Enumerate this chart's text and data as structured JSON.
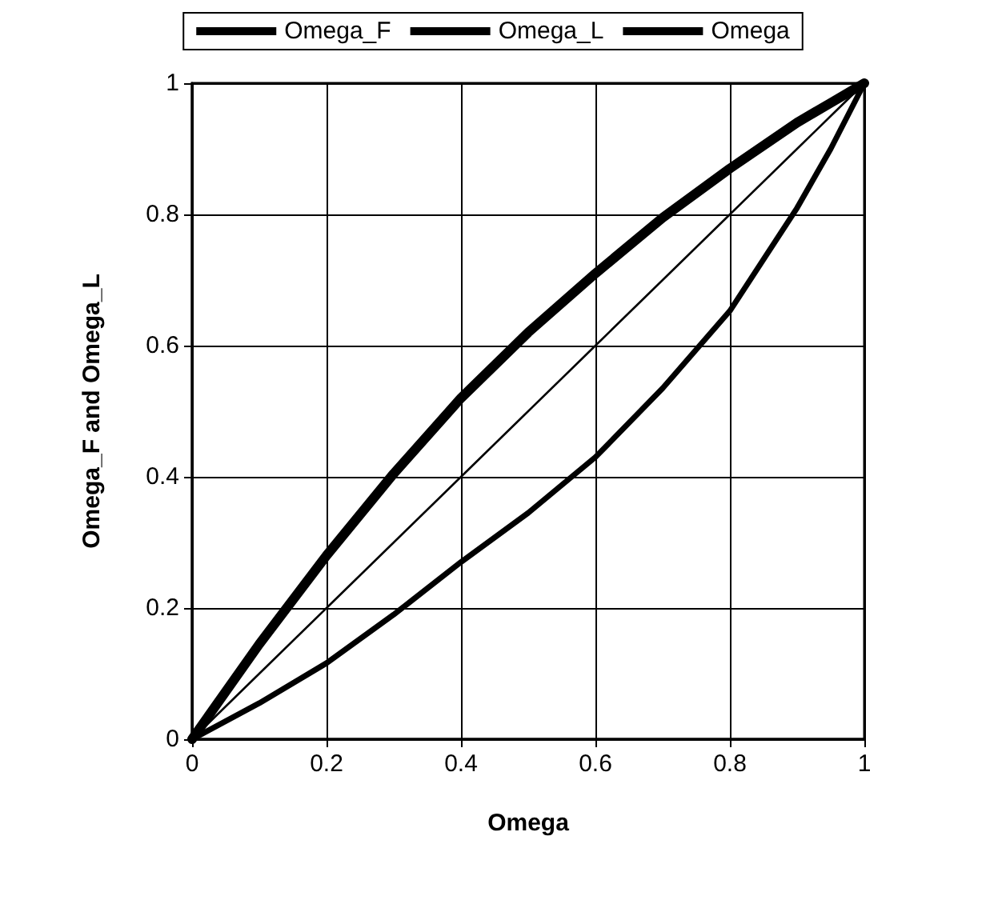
{
  "chart_data": {
    "type": "line",
    "xlabel": "Omega",
    "ylabel": "Omega_F and Omega_L",
    "x": [
      0,
      0.1,
      0.2,
      0.3,
      0.4,
      0.5,
      0.6,
      0.7,
      0.8,
      0.9,
      0.95,
      1
    ],
    "series": [
      {
        "name": "Omega_F",
        "color": "#000000",
        "values": [
          0,
          0.145,
          0.28,
          0.405,
          0.52,
          0.62,
          0.71,
          0.795,
          0.87,
          0.94,
          0.97,
          1
        ]
      },
      {
        "name": "Omega_L",
        "color": "#000000",
        "values": [
          0,
          0.055,
          0.116,
          0.19,
          0.27,
          0.345,
          0.43,
          0.535,
          0.653,
          0.81,
          0.9,
          1
        ]
      },
      {
        "name": "Omega",
        "color": "#000000",
        "values": [
          0,
          0.1,
          0.2,
          0.3,
          0.4,
          0.5,
          0.6,
          0.7,
          0.8,
          0.9,
          0.95,
          1
        ]
      }
    ],
    "xlim": [
      0,
      1
    ],
    "ylim": [
      0,
      1
    ],
    "xticks": [
      0,
      0.2,
      0.4,
      0.6,
      0.8,
      1
    ],
    "yticks": [
      0,
      0.2,
      0.4,
      0.6,
      0.8,
      1
    ],
    "grid": true,
    "legend": "top",
    "marker": "none",
    "line_style": "solid"
  }
}
